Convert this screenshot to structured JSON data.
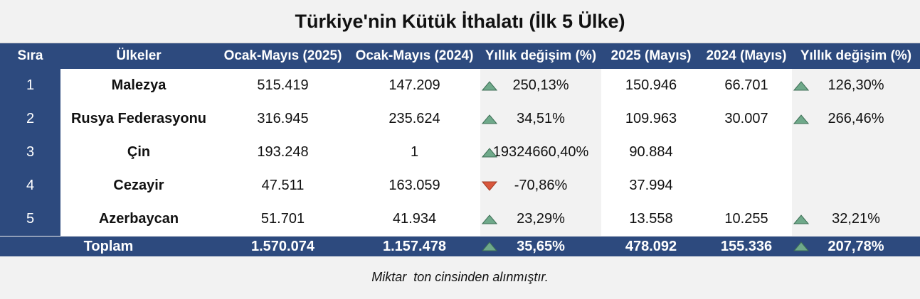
{
  "title": "Türkiye'nin Kütük İthalatı (İlk 5 Ülke)",
  "table": {
    "header": [
      "Sıra",
      "Ülkeler",
      "Ocak-Mayıs (2025)",
      "Ocak-Mayıs (2024)",
      "Yıllık değişim (%)",
      "2025 (Mayıs)",
      "2024 (Mayıs)",
      "Yıllık değişim (%)"
    ],
    "rows": [
      [
        "1",
        "Malezya",
        "515.419",
        "147.209",
        "250,13%",
        "150.946",
        "66.701",
        "126,30%"
      ],
      [
        "2",
        "Rusya Federasyonu",
        "316.945",
        "235.624",
        "34,51%",
        "109.963",
        "30.007",
        "266,46%"
      ],
      [
        "3",
        "Çin",
        "193.248",
        "1",
        "19324660,40%",
        "90.884",
        null,
        null
      ],
      [
        "4",
        "Cezayir",
        "47.511",
        "163.059",
        "-70,86%",
        "37.994",
        null,
        null
      ],
      [
        "5",
        "Azerbaycan",
        "51.701",
        "41.934",
        "23,29%",
        "13.558",
        "10.255",
        "32,21%"
      ]
    ],
    "total": [
      "Toplam",
      "1.570.074",
      "1.157.478",
      "35,65%",
      "478.092",
      "155.336",
      "207,78%"
    ]
  },
  "footnote": "Miktar  ton cinsinden alınmıştır."
}
